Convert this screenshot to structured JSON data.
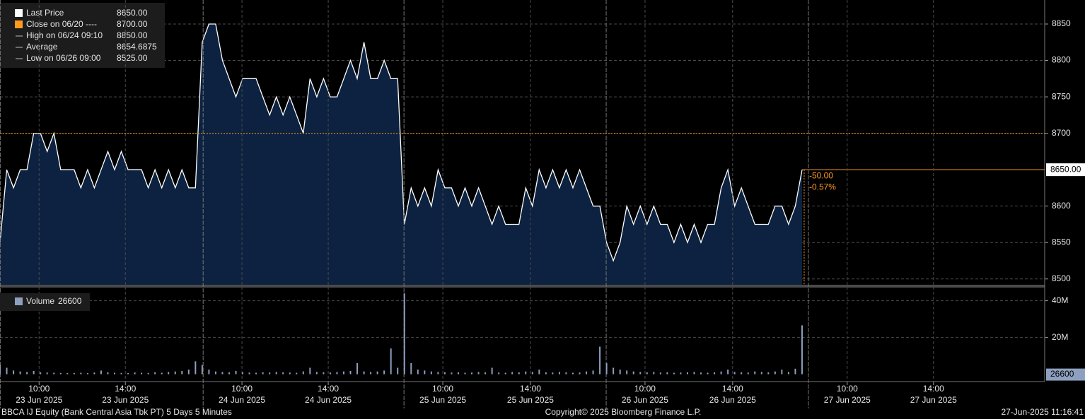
{
  "chart_data": [
    {
      "type": "line",
      "legend": [
        {
          "label": "Last Price",
          "value": "8650.00",
          "color": "#ffffff"
        },
        {
          "label": "Close on 06/20 ----",
          "value": "8700.00",
          "color": "#ff9a1f"
        },
        {
          "label": "High on 06/24 09:10",
          "value": "8850.00",
          "color": "#bbbbbb"
        },
        {
          "label": "Average",
          "value": "8654.6875",
          "color": "#bbbbbb"
        },
        {
          "label": "Low on 06/26 09:00",
          "value": "8525.00",
          "color": "#bbbbbb"
        }
      ],
      "close": 8700,
      "close_color": "#ff9a1f",
      "last_label": "8650.00",
      "change": "-50.00",
      "change_pct": "-0.57%",
      "series": [
        {
          "name": "Last Price",
          "color": "#ffffff",
          "fill": "#0c2240",
          "values": [
            8550,
            8650,
            8625,
            8650,
            8650,
            8700,
            8700,
            8675,
            8700,
            8650,
            8650,
            8650,
            8625,
            8650,
            8625,
            8650,
            8675,
            8650,
            8675,
            8650,
            8650,
            8650,
            8625,
            8650,
            8625,
            8650,
            8625,
            8650,
            8625,
            8625,
            8825,
            8850,
            8850,
            8800,
            8775,
            8750,
            8775,
            8775,
            8775,
            8750,
            8725,
            8750,
            8725,
            8750,
            8725,
            8700,
            8775,
            8750,
            8775,
            8750,
            8750,
            8775,
            8800,
            8775,
            8825,
            8775,
            8775,
            8800,
            8775,
            8775,
            8575,
            8625,
            8600,
            8625,
            8600,
            8650,
            8625,
            8625,
            8600,
            8625,
            8600,
            8625,
            8600,
            8575,
            8600,
            8575,
            8575,
            8575,
            8625,
            8600,
            8650,
            8625,
            8650,
            8625,
            8650,
            8625,
            8650,
            8625,
            8600,
            8600,
            8550,
            8525,
            8550,
            8600,
            8575,
            8600,
            8575,
            8600,
            8575,
            8575,
            8550,
            8575,
            8550,
            8575,
            8550,
            8575,
            8575,
            8625,
            8650,
            8600,
            8625,
            8600,
            8575,
            8575,
            8575,
            8600,
            8600,
            8575,
            8600,
            8650
          ]
        }
      ],
      "xlim": [
        0,
        155
      ],
      "ylim": [
        8492,
        8883
      ],
      "yticks": [
        8500,
        8550,
        8600,
        8700,
        8750,
        8800,
        8850
      ],
      "grid": true
    },
    {
      "type": "bar",
      "legend": "Volume",
      "series": [
        {
          "name": "Volume",
          "color": "#8da0bf",
          "values": [
            5000000,
            3500000,
            2000000,
            1500000,
            1200000,
            1800000,
            1000000,
            900000,
            800000,
            700000,
            600000,
            700000,
            800000,
            600000,
            900000,
            2000000,
            1000000,
            800000,
            700000,
            600000,
            900000,
            800000,
            700000,
            1000000,
            800000,
            1200000,
            1500000,
            1800000,
            2500000,
            7000000,
            5000000,
            2500000,
            1500000,
            1200000,
            1000000,
            1800000,
            1000000,
            900000,
            800000,
            1000000,
            900000,
            1200000,
            1000000,
            900000,
            800000,
            1500000,
            3500000,
            1200000,
            1000000,
            900000,
            1200000,
            1500000,
            1800000,
            6000000,
            1500000,
            1200000,
            1500000,
            2000000,
            14000000,
            3500000,
            44000000,
            6000000,
            2500000,
            2000000,
            1500000,
            1200000,
            1000000,
            900000,
            1000000,
            800000,
            900000,
            1200000,
            1000000,
            3500000,
            900000,
            800000,
            1200000,
            1000000,
            1500000,
            1200000,
            2500000,
            1000000,
            900000,
            1200000,
            1000000,
            800000,
            900000,
            1500000,
            2000000,
            15000000,
            6000000,
            3500000,
            2500000,
            2000000,
            1500000,
            1200000,
            1000000,
            1200000,
            900000,
            1000000,
            800000,
            900000,
            1000000,
            1200000,
            900000,
            800000,
            1000000,
            1500000,
            2500000,
            1200000,
            1000000,
            900000,
            1500000,
            1200000,
            1000000,
            1500000,
            2500000,
            1200000,
            3000000,
            26600000
          ]
        }
      ],
      "value_labels": [
        null,
        null,
        null,
        null,
        null,
        null,
        null,
        null,
        null,
        null,
        null,
        null,
        null,
        null,
        null,
        null,
        null,
        null,
        null,
        null,
        null,
        null,
        null,
        null,
        null,
        null,
        null,
        null,
        null,
        null,
        null,
        null,
        null,
        null,
        null,
        null,
        null,
        null,
        null,
        null,
        null,
        null,
        null,
        null,
        null,
        null,
        null,
        null,
        null,
        null,
        null,
        null,
        null,
        null,
        null,
        null,
        null,
        null,
        null,
        null,
        null,
        null,
        null,
        null,
        null,
        null,
        null,
        null,
        null,
        null,
        null,
        null,
        null,
        null,
        null,
        null,
        null,
        null,
        null,
        null,
        null,
        null,
        null,
        null,
        null,
        null,
        null,
        null,
        null,
        null,
        null,
        null,
        null,
        null,
        null,
        null,
        null,
        null,
        null,
        null,
        null,
        null,
        null,
        null,
        null,
        null,
        null,
        null,
        null,
        null,
        null,
        null,
        null,
        null,
        null,
        null,
        null,
        null,
        null,
        "26600"
      ],
      "xlim": [
        0,
        155
      ],
      "ylim": [
        -4000000,
        46000000
      ],
      "yticks": [
        {
          "value": 20000000,
          "label": "20M"
        },
        {
          "value": 40000000,
          "label": "40M"
        }
      ],
      "xticks": [
        {
          "value": 5.8,
          "label": "10:00",
          "date": "23 Jun 2025"
        },
        {
          "value": 18.6,
          "label": "14:00",
          "date": "23 Jun 2025"
        },
        {
          "value": 35.9,
          "label": "10:00",
          "date": "24 Jun 2025"
        },
        {
          "value": 48.7,
          "label": "14:00",
          "date": "24 Jun 2025"
        },
        {
          "value": 65.7,
          "label": "10:00",
          "date": "25 Jun 2025"
        },
        {
          "value": 78.7,
          "label": "14:00",
          "date": "25 Jun 2025"
        },
        {
          "value": 95.7,
          "label": "10:00",
          "date": "26 Jun 2025"
        },
        {
          "value": 108.7,
          "label": "14:00",
          "date": "26 Jun 2025"
        },
        {
          "value": 125.7,
          "label": "10:00",
          "date": "27 Jun 2025"
        },
        {
          "value": 138.5,
          "label": "14:00",
          "date": "27 Jun 2025"
        }
      ]
    }
  ],
  "footer": {
    "left": "BBCA IJ Equity (Bank Central Asia Tbk PT) 5 Days 5 Minutes",
    "center": "Copyright© 2025 Bloomberg Finance L.P.",
    "right": "27-Jun-2025 11:16:41"
  }
}
